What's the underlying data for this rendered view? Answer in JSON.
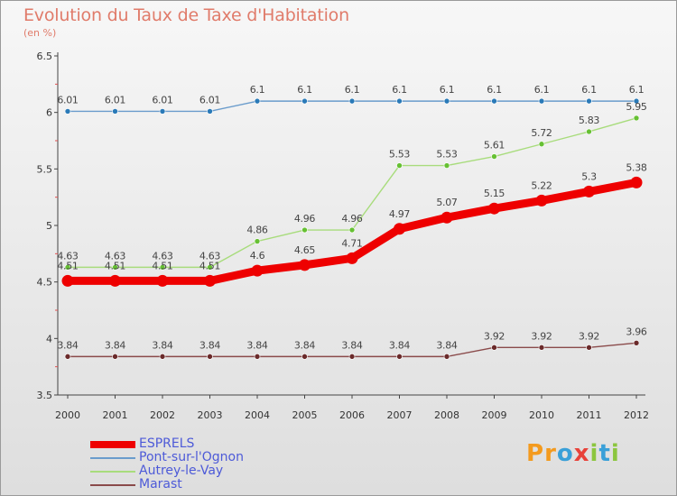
{
  "title": "Evolution du Taux de Taxe d'Habitation",
  "unit_label": "(en %)",
  "brand": {
    "text": "Proxiti",
    "letters": [
      {
        "ch": "P",
        "color": "#f39a1e"
      },
      {
        "ch": "r",
        "color": "#f39a1e"
      },
      {
        "ch": "o",
        "color": "#3aa0d8"
      },
      {
        "ch": "x",
        "color": "#e8423a"
      },
      {
        "ch": "i",
        "color": "#8cc63f"
      },
      {
        "ch": "t",
        "color": "#3aa0d8"
      },
      {
        "ch": "i",
        "color": "#8cc63f"
      }
    ]
  },
  "chart_data": {
    "type": "line",
    "title": "Evolution du Taux de Taxe d'Habitation",
    "ylabel": "(en %)",
    "xlabel": "",
    "x": [
      "2000",
      "2001",
      "2002",
      "2003",
      "2004",
      "2005",
      "2006",
      "2007",
      "2008",
      "2009",
      "2010",
      "2011",
      "2012"
    ],
    "ylim": [
      3.5,
      6.5
    ],
    "yticks": [
      3.5,
      4,
      4.5,
      5,
      5.5,
      6,
      6.5
    ],
    "ytick_labels": [
      "3.5",
      "4",
      "4.5",
      "5",
      "5.5",
      "6",
      "6.5"
    ],
    "grid": false,
    "legend_position": "bottom-left",
    "series": [
      {
        "name": "ESPRELS",
        "color": "#ee0000",
        "emphasis": true,
        "values": [
          4.51,
          4.51,
          4.51,
          4.51,
          4.6,
          4.65,
          4.71,
          4.97,
          5.07,
          5.15,
          5.22,
          5.3,
          5.38
        ],
        "labels": [
          "4.51",
          "4.51",
          "4.51",
          "4.51",
          "4.6",
          "4.65",
          "4.71",
          "4.97",
          "5.07",
          "5.15",
          "5.22",
          "5.3",
          "5.38"
        ]
      },
      {
        "name": "Pont-sur-l'Ognon",
        "color": "#6a9ccc",
        "marker": "#2a7ab8",
        "values": [
          6.01,
          6.01,
          6.01,
          6.01,
          6.1,
          6.1,
          6.1,
          6.1,
          6.1,
          6.1,
          6.1,
          6.1,
          6.1
        ],
        "labels": [
          "6.01",
          "6.01",
          "6.01",
          "6.01",
          "6.1",
          "6.1",
          "6.1",
          "6.1",
          "6.1",
          "6.1",
          "6.1",
          "6.1",
          "6.1"
        ]
      },
      {
        "name": "Autrey-le-Vay",
        "color": "#a8dc7c",
        "marker": "#66c033",
        "values": [
          4.63,
          4.63,
          4.63,
          4.63,
          4.86,
          4.96,
          4.96,
          5.53,
          5.53,
          5.61,
          5.72,
          5.83,
          5.95
        ],
        "labels": [
          "4.63",
          "4.63",
          "4.63",
          "4.63",
          "4.86",
          "4.96",
          "4.96",
          "5.53",
          "5.53",
          "5.61",
          "5.72",
          "5.83",
          "5.95"
        ]
      },
      {
        "name": "Marast",
        "color": "#8a4a4a",
        "marker": "#6a2a2a",
        "values": [
          3.84,
          3.84,
          3.84,
          3.84,
          3.84,
          3.84,
          3.84,
          3.84,
          3.84,
          3.92,
          3.92,
          3.92,
          3.96
        ],
        "labels": [
          "3.84",
          "3.84",
          "3.84",
          "3.84",
          "3.84",
          "3.84",
          "3.84",
          "3.84",
          "3.84",
          "3.92",
          "3.92",
          "3.92",
          "3.96"
        ]
      }
    ]
  }
}
